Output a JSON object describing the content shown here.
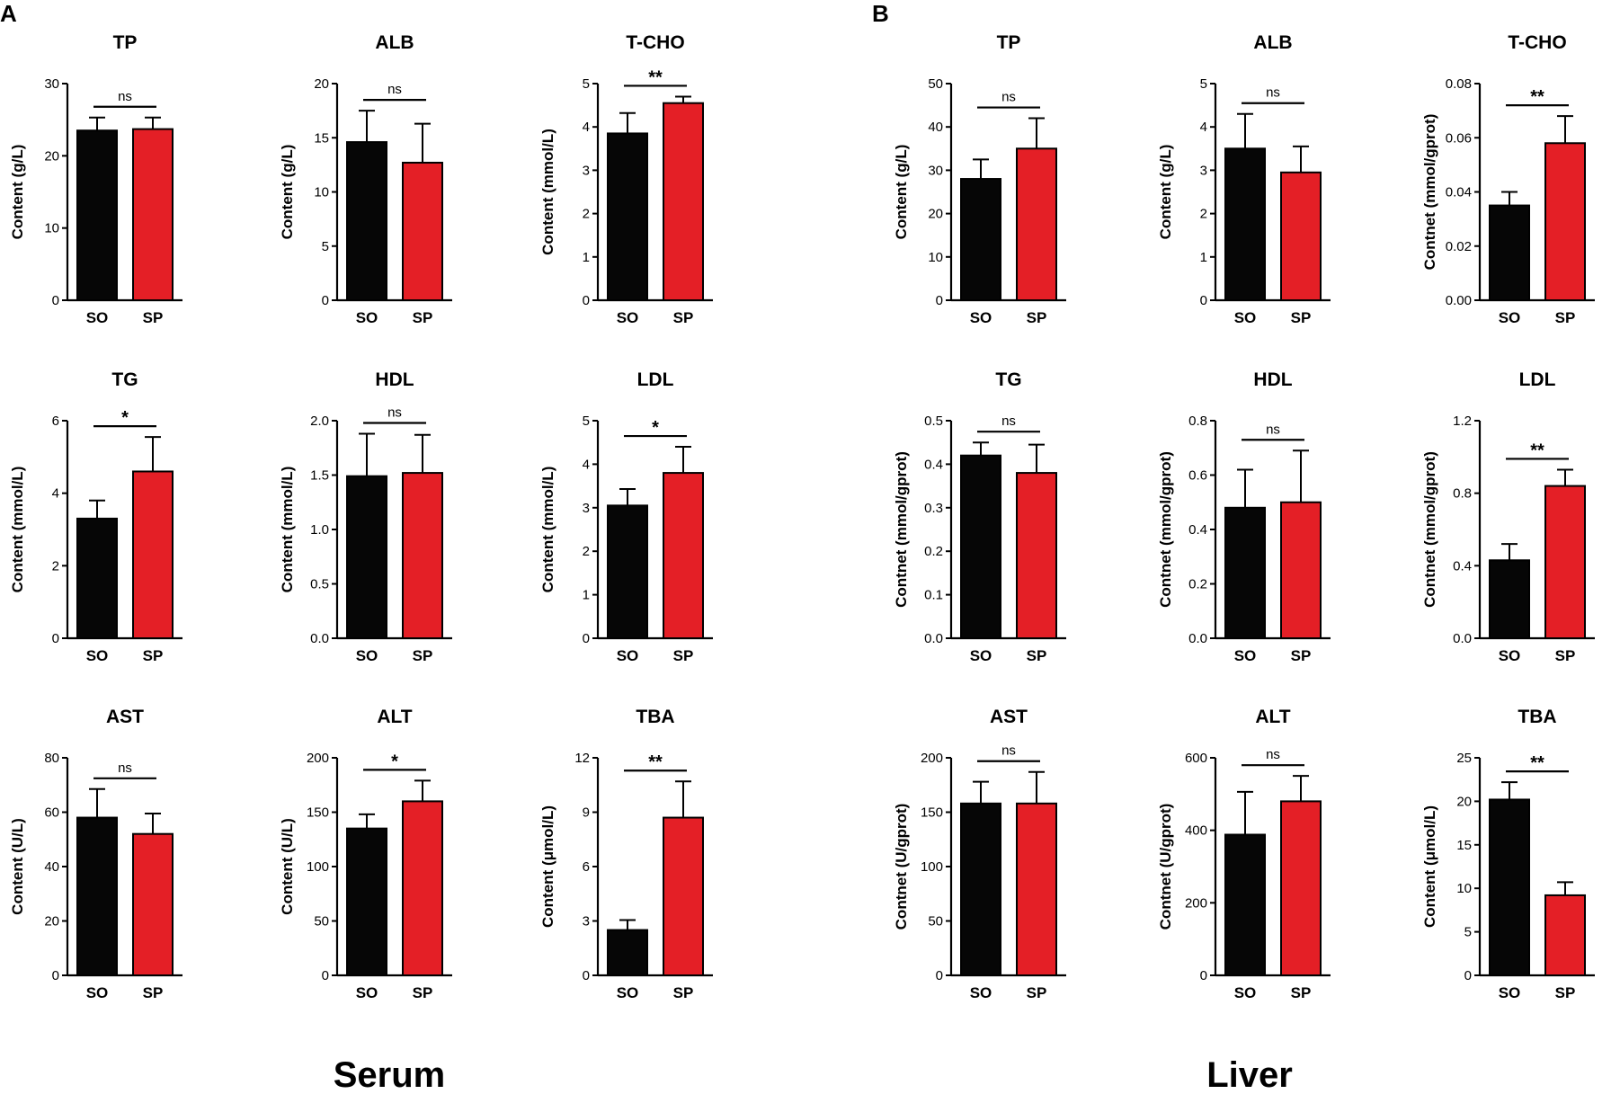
{
  "panels": [
    {
      "label": "A",
      "section": "Serum"
    },
    {
      "label": "B",
      "section": "Liver"
    }
  ],
  "colors": {
    "SO": "#060606",
    "SP": "#e41f26",
    "axis": "#000000"
  },
  "chart_data": [
    {
      "type": "bar",
      "panel": "A",
      "title": "TP",
      "ylabel": "Content (g/L)",
      "categories": [
        "SO",
        "SP"
      ],
      "values": [
        23.5,
        23.7
      ],
      "errors": [
        1.8,
        1.6
      ],
      "ylim": [
        0,
        30
      ],
      "yticks": [
        0,
        10,
        20,
        30
      ],
      "tick_labels": [
        "0",
        "10",
        "20",
        "30"
      ],
      "significance": "ns"
    },
    {
      "type": "bar",
      "panel": "A",
      "title": "ALB",
      "ylabel": "Content (g/L)",
      "categories": [
        "SO",
        "SP"
      ],
      "values": [
        14.6,
        12.7
      ],
      "errors": [
        2.9,
        3.6
      ],
      "ylim": [
        0,
        20
      ],
      "yticks": [
        0,
        5,
        10,
        15,
        20
      ],
      "tick_labels": [
        "0",
        "5",
        "10",
        "15",
        "20"
      ],
      "significance": "ns"
    },
    {
      "type": "bar",
      "panel": "A",
      "title": "T-CHO",
      "ylabel": "Content (mmol/L)",
      "categories": [
        "SO",
        "SP"
      ],
      "values": [
        3.85,
        4.55
      ],
      "errors": [
        0.47,
        0.15
      ],
      "ylim": [
        0,
        5
      ],
      "yticks": [
        0,
        1,
        2,
        3,
        4,
        5
      ],
      "tick_labels": [
        "0",
        "1",
        "2",
        "3",
        "4",
        "5"
      ],
      "significance": "**"
    },
    {
      "type": "bar",
      "panel": "A",
      "title": "TG",
      "ylabel": "Content (mmol/L)",
      "categories": [
        "SO",
        "SP"
      ],
      "values": [
        3.3,
        4.6
      ],
      "errors": [
        0.5,
        0.95
      ],
      "ylim": [
        0,
        6
      ],
      "yticks": [
        0,
        2,
        4,
        6
      ],
      "tick_labels": [
        "0",
        "2",
        "4",
        "6"
      ],
      "significance": "*"
    },
    {
      "type": "bar",
      "panel": "A",
      "title": "HDL",
      "ylabel": "Content (mmol/L)",
      "categories": [
        "SO",
        "SP"
      ],
      "values": [
        1.49,
        1.52
      ],
      "errors": [
        0.39,
        0.35
      ],
      "ylim": [
        0,
        2
      ],
      "yticks": [
        0,
        0.5,
        1,
        1.5,
        2
      ],
      "tick_labels": [
        "0.0",
        "0.5",
        "1.0",
        "1.5",
        "2.0"
      ],
      "significance": "ns"
    },
    {
      "type": "bar",
      "panel": "A",
      "title": "LDL",
      "ylabel": "Content (mmol/L)",
      "categories": [
        "SO",
        "SP"
      ],
      "values": [
        3.05,
        3.8
      ],
      "errors": [
        0.38,
        0.6
      ],
      "ylim": [
        0,
        5
      ],
      "yticks": [
        0,
        1,
        2,
        3,
        4,
        5
      ],
      "tick_labels": [
        "0",
        "1",
        "2",
        "3",
        "4",
        "5"
      ],
      "significance": "*"
    },
    {
      "type": "bar",
      "panel": "A",
      "title": "AST",
      "ylabel": "Content (U/L)",
      "categories": [
        "SO",
        "SP"
      ],
      "values": [
        58,
        52
      ],
      "errors": [
        10.5,
        7.5
      ],
      "ylim": [
        0,
        80
      ],
      "yticks": [
        0,
        20,
        40,
        60,
        80
      ],
      "tick_labels": [
        "0",
        "20",
        "40",
        "60",
        "80"
      ],
      "significance": "ns"
    },
    {
      "type": "bar",
      "panel": "A",
      "title": "ALT",
      "ylabel": "Content (U/L)",
      "categories": [
        "SO",
        "SP"
      ],
      "values": [
        135,
        160
      ],
      "errors": [
        13,
        19
      ],
      "ylim": [
        0,
        200
      ],
      "yticks": [
        0,
        50,
        100,
        150,
        200
      ],
      "tick_labels": [
        "0",
        "50",
        "100",
        "150",
        "200"
      ],
      "significance": "*"
    },
    {
      "type": "bar",
      "panel": "A",
      "title": "TBA",
      "ylabel": "Content (μmol/L)",
      "categories": [
        "SO",
        "SP"
      ],
      "values": [
        2.5,
        8.7
      ],
      "errors": [
        0.55,
        2.0
      ],
      "ylim": [
        0,
        12
      ],
      "yticks": [
        0,
        3,
        6,
        9,
        12
      ],
      "tick_labels": [
        "0",
        "3",
        "6",
        "9",
        "12"
      ],
      "significance": "**"
    },
    {
      "type": "bar",
      "panel": "B",
      "title": "TP",
      "ylabel": "Content (g/L)",
      "categories": [
        "SO",
        "SP"
      ],
      "values": [
        28,
        35
      ],
      "errors": [
        4.5,
        7
      ],
      "ylim": [
        0,
        50
      ],
      "yticks": [
        0,
        10,
        20,
        30,
        40,
        50
      ],
      "tick_labels": [
        "0",
        "10",
        "20",
        "30",
        "40",
        "50"
      ],
      "significance": "ns"
    },
    {
      "type": "bar",
      "panel": "B",
      "title": "ALB",
      "ylabel": "Content (g/L)",
      "categories": [
        "SO",
        "SP"
      ],
      "values": [
        3.5,
        2.95
      ],
      "errors": [
        0.8,
        0.6
      ],
      "ylim": [
        0,
        5
      ],
      "yticks": [
        0,
        1,
        2,
        3,
        4,
        5
      ],
      "tick_labels": [
        "0",
        "1",
        "2",
        "3",
        "4",
        "5"
      ],
      "significance": "ns"
    },
    {
      "type": "bar",
      "panel": "B",
      "title": "T-CHO",
      "ylabel": "Contnet (mmol/gprot)",
      "categories": [
        "SO",
        "SP"
      ],
      "values": [
        0.035,
        0.058
      ],
      "errors": [
        0.005,
        0.01
      ],
      "ylim": [
        0,
        0.08
      ],
      "yticks": [
        0,
        0.02,
        0.04,
        0.06,
        0.08
      ],
      "tick_labels": [
        "0.00",
        "0.02",
        "0.04",
        "0.06",
        "0.08"
      ],
      "significance": "**"
    },
    {
      "type": "bar",
      "panel": "B",
      "title": "TG",
      "ylabel": "Contnet (mmol/gprot)",
      "categories": [
        "SO",
        "SP"
      ],
      "values": [
        0.42,
        0.38
      ],
      "errors": [
        0.03,
        0.065
      ],
      "ylim": [
        0,
        0.5
      ],
      "yticks": [
        0,
        0.1,
        0.2,
        0.3,
        0.4,
        0.5
      ],
      "tick_labels": [
        "0.0",
        "0.1",
        "0.2",
        "0.3",
        "0.4",
        "0.5"
      ],
      "significance": "ns"
    },
    {
      "type": "bar",
      "panel": "B",
      "title": "HDL",
      "ylabel": "Contnet (mmol/gprot)",
      "categories": [
        "SO",
        "SP"
      ],
      "values": [
        0.48,
        0.5
      ],
      "errors": [
        0.14,
        0.19
      ],
      "ylim": [
        0,
        0.8
      ],
      "yticks": [
        0,
        0.2,
        0.4,
        0.6,
        0.8
      ],
      "tick_labels": [
        "0.0",
        "0.2",
        "0.4",
        "0.6",
        "0.8"
      ],
      "significance": "ns"
    },
    {
      "type": "bar",
      "panel": "B",
      "title": "LDL",
      "ylabel": "Contnet (mmol/gprot)",
      "categories": [
        "SO",
        "SP"
      ],
      "values": [
        0.43,
        0.84
      ],
      "errors": [
        0.09,
        0.09
      ],
      "ylim": [
        0,
        1.2
      ],
      "yticks": [
        0,
        0.4,
        0.8,
        1.2
      ],
      "tick_labels": [
        "0.0",
        "0.4",
        "0.8",
        "1.2"
      ],
      "significance": "**"
    },
    {
      "type": "bar",
      "panel": "B",
      "title": "AST",
      "ylabel": "Contnet (U/gprot)",
      "categories": [
        "SO",
        "SP"
      ],
      "values": [
        158,
        158
      ],
      "errors": [
        20,
        29
      ],
      "ylim": [
        0,
        200
      ],
      "yticks": [
        0,
        50,
        100,
        150,
        200
      ],
      "tick_labels": [
        "0",
        "50",
        "100",
        "150",
        "200"
      ],
      "significance": "ns"
    },
    {
      "type": "bar",
      "panel": "B",
      "title": "ALT",
      "ylabel": "Contnet (U/gprot)",
      "categories": [
        "SO",
        "SP"
      ],
      "values": [
        388,
        480
      ],
      "errors": [
        118,
        70
      ],
      "ylim": [
        0,
        600
      ],
      "yticks": [
        0,
        200,
        400,
        600
      ],
      "tick_labels": [
        "0",
        "200",
        "400",
        "600"
      ],
      "significance": "ns"
    },
    {
      "type": "bar",
      "panel": "B",
      "title": "TBA",
      "ylabel": "Content (μmol/L)",
      "categories": [
        "SO",
        "SP"
      ],
      "values": [
        20.2,
        9.2
      ],
      "errors": [
        2.0,
        1.5
      ],
      "ylim": [
        0,
        25
      ],
      "yticks": [
        0,
        5,
        10,
        15,
        20,
        25
      ],
      "tick_labels": [
        "0",
        "5",
        "10",
        "15",
        "20",
        "25"
      ],
      "significance": "**"
    }
  ]
}
